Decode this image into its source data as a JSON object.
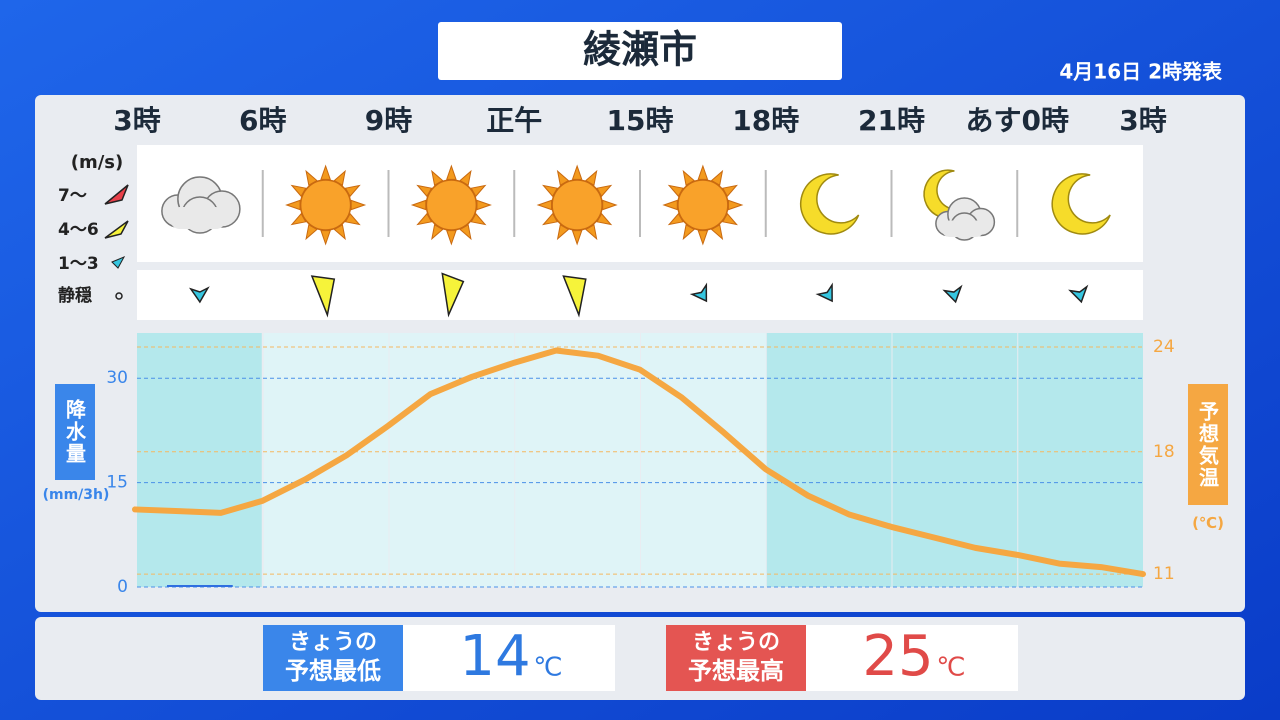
{
  "header": {
    "title": "綾瀬市",
    "issued": "4月16日 2時発表"
  },
  "wind_legend": {
    "unit": "(m/s)",
    "levels": [
      "7〜",
      "4〜6",
      "1〜3",
      "静穏"
    ]
  },
  "chart_data": [
    {
      "type": "bar",
      "title": "降水量",
      "unit": "(mm/3h)",
      "color": "#2f6fe0",
      "categories": [
        null,
        null,
        null,
        null,
        null,
        null,
        null,
        null
      ],
      "values": [
        0,
        null,
        null,
        null,
        null,
        null,
        null,
        null
      ],
      "ylim": [
        0,
        36.5
      ],
      "yticks": [
        0,
        15,
        30
      ],
      "grid": true
    },
    {
      "type": "line",
      "title": "予想気温",
      "unit": "(℃)",
      "color": "#f5a742",
      "categories": [
        "3時",
        null,
        null,
        "6時",
        null,
        null,
        "9時",
        null,
        null,
        "正午",
        null,
        null,
        "15時",
        null,
        null,
        "18時",
        null,
        null,
        "21時",
        null,
        null,
        "あす0時",
        null,
        null,
        "3時"
      ],
      "values": [
        14.7,
        14.6,
        14.5,
        15.2,
        16.4,
        17.8,
        19.5,
        21.3,
        22.3,
        23.1,
        23.8,
        23.5,
        22.7,
        21.1,
        19.1,
        17.0,
        15.5,
        14.4,
        13.7,
        13.1,
        12.5,
        12.1,
        11.6,
        11.4,
        11.0
      ],
      "ylim": [
        10.26,
        24.8
      ],
      "yticks": [
        11,
        18,
        24
      ],
      "grid": true
    }
  ],
  "summary": {
    "low": {
      "label": [
        "きょうの",
        "予想最低"
      ],
      "value": 14,
      "unit": "℃"
    },
    "high": {
      "label": [
        "きょうの",
        "予想最高"
      ],
      "value": 25,
      "unit": "℃"
    }
  }
}
